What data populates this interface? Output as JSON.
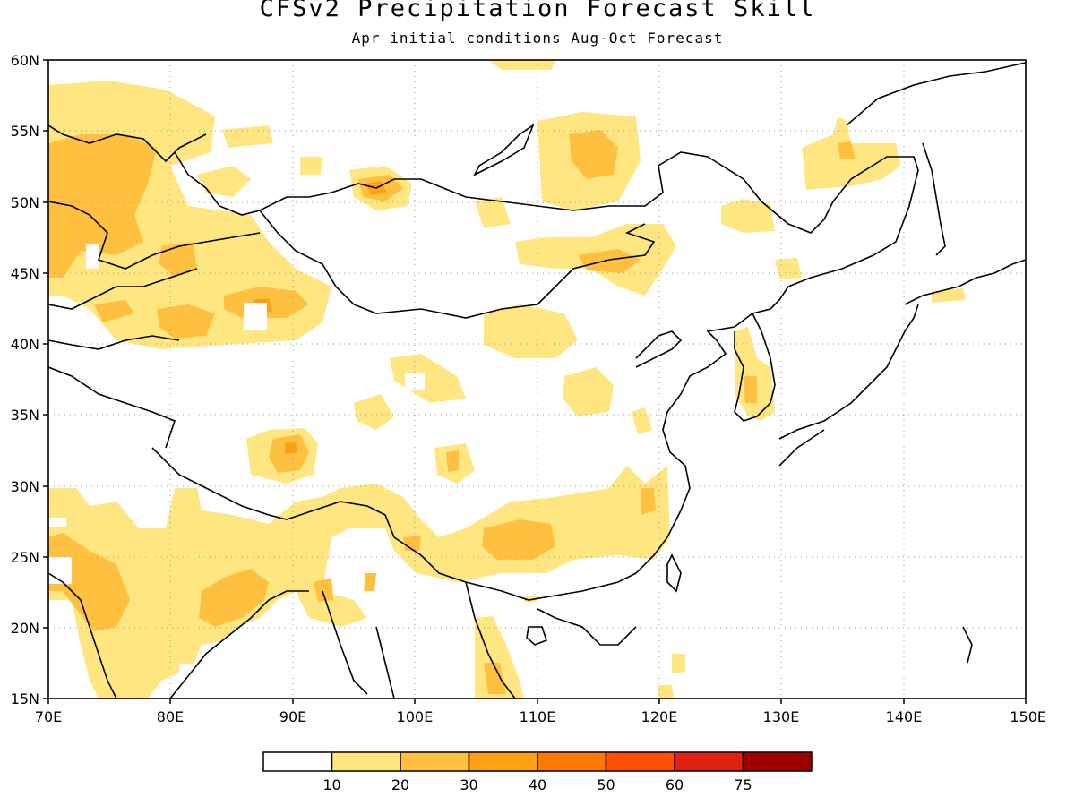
{
  "title": "CFSv2 Precipitation Forecast Skill",
  "subtitle": "Apr initial conditions  Aug-Oct Forecast",
  "map": {
    "lon_range": [
      70,
      150
    ],
    "lat_range": [
      15,
      60
    ],
    "lon_ticks": [
      "70E",
      "80E",
      "90E",
      "100E",
      "110E",
      "120E",
      "130E",
      "140E",
      "150E"
    ],
    "lat_ticks": [
      "15N",
      "20N",
      "25N",
      "30N",
      "35N",
      "40N",
      "45N",
      "50N",
      "55N",
      "60N"
    ],
    "grid": "dotted"
  },
  "colorbar": {
    "labels": [
      "10",
      "20",
      "30",
      "40",
      "50",
      "60",
      "75"
    ],
    "colors": [
      "#ffffff",
      "#ffe680",
      "#ffc040",
      "#ffa010",
      "#ff7800",
      "#ff5000",
      "#e02010",
      "#a00000"
    ]
  }
}
